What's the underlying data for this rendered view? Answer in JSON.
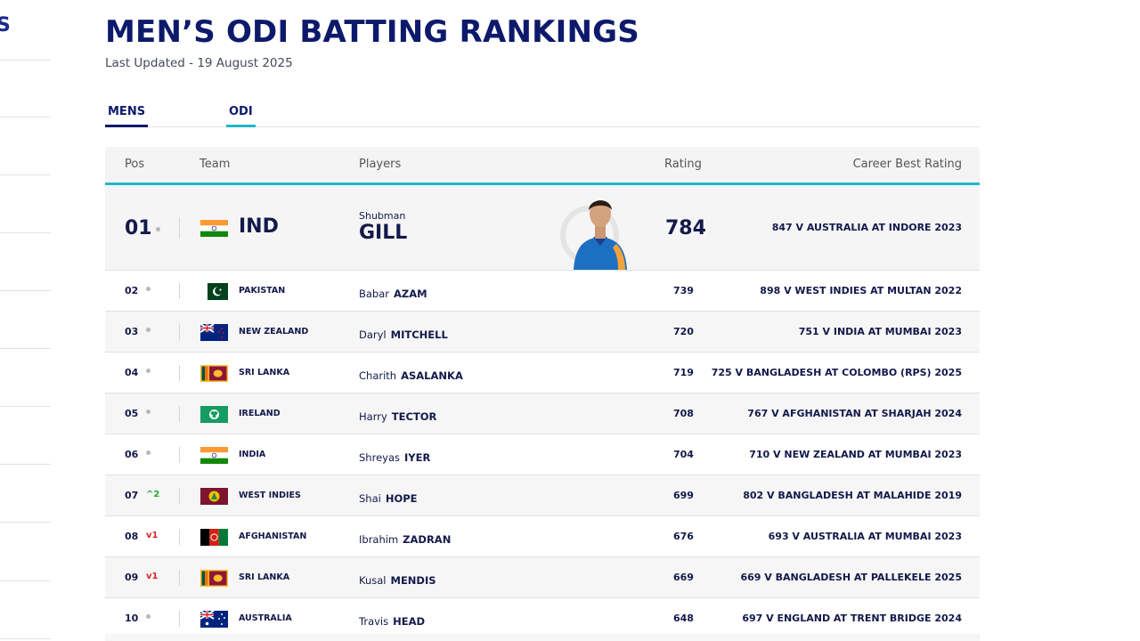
{
  "page": {
    "title": "MEN’S ODI BATTING RANKINGS",
    "last_updated": "Last Updated - 19 August 2025"
  },
  "tabs": [
    {
      "label": "MENS",
      "active": true
    },
    {
      "label": "ODI",
      "active": true
    }
  ],
  "table": {
    "headers": {
      "pos": "Pos",
      "team": "Team",
      "players": "Players",
      "rating": "Rating",
      "career_best": "Career Best Rating"
    },
    "top": {
      "pos": "01",
      "movement": "",
      "team": "IND",
      "first_name": "Shubman",
      "last_name": "GILL",
      "rating": "784",
      "career_best": "847 V AUSTRALIA AT INDORE 2023"
    },
    "rows": [
      {
        "pos": "02",
        "movement": "",
        "dir": "same",
        "team": "PAKISTAN",
        "flag": "pak",
        "first_name": "Babar",
        "last_name": "AZAM",
        "rating": "739",
        "career_best": "898 V WEST INDIES AT MULTAN 2022"
      },
      {
        "pos": "03",
        "movement": "",
        "dir": "same",
        "team": "NEW ZEALAND",
        "flag": "nz",
        "first_name": "Daryl",
        "last_name": "MITCHELL",
        "rating": "720",
        "career_best": "751 V INDIA AT MUMBAI 2023"
      },
      {
        "pos": "04",
        "movement": "",
        "dir": "same",
        "team": "SRI LANKA",
        "flag": "sl",
        "first_name": "Charith",
        "last_name": "ASALANKA",
        "rating": "719",
        "career_best": "725 V BANGLADESH AT COLOMBO (RPS) 2025"
      },
      {
        "pos": "05",
        "movement": "",
        "dir": "same",
        "team": "IRELAND",
        "flag": "ire",
        "first_name": "Harry",
        "last_name": "TECTOR",
        "rating": "708",
        "career_best": "767 V AFGHANISTAN AT SHARJAH 2024"
      },
      {
        "pos": "06",
        "movement": "",
        "dir": "same",
        "team": "INDIA",
        "flag": "ind",
        "first_name": "Shreyas",
        "last_name": "IYER",
        "rating": "704",
        "career_best": "710 V NEW ZEALAND AT MUMBAI 2023"
      },
      {
        "pos": "07",
        "movement": "^2",
        "dir": "up",
        "team": "WEST INDIES",
        "flag": "wi",
        "first_name": "Shai",
        "last_name": "HOPE",
        "rating": "699",
        "career_best": "802 V BANGLADESH AT MALAHIDE 2019"
      },
      {
        "pos": "08",
        "movement": "v1",
        "dir": "down",
        "team": "AFGHANISTAN",
        "flag": "afg",
        "first_name": "Ibrahim",
        "last_name": "ZADRAN",
        "rating": "676",
        "career_best": "693 V AUSTRALIA AT MUMBAI 2023"
      },
      {
        "pos": "09",
        "movement": "v1",
        "dir": "down",
        "team": "SRI LANKA",
        "flag": "sl",
        "first_name": "Kusal",
        "last_name": "MENDIS",
        "rating": "669",
        "career_best": "669 V BANGLADESH AT PALLEKELE 2025"
      },
      {
        "pos": "10",
        "movement": "",
        "dir": "same",
        "team": "AUSTRALIA",
        "flag": "aus",
        "first_name": "Travis",
        "last_name": "HEAD",
        "rating": "648",
        "career_best": "697 V ENGLAND AT TRENT BRIDGE 2024"
      }
    ]
  },
  "colors": {
    "title": "#0d1a6b",
    "accent": "#1fb7c6",
    "up": "#1ea838",
    "down": "#d8232a"
  }
}
